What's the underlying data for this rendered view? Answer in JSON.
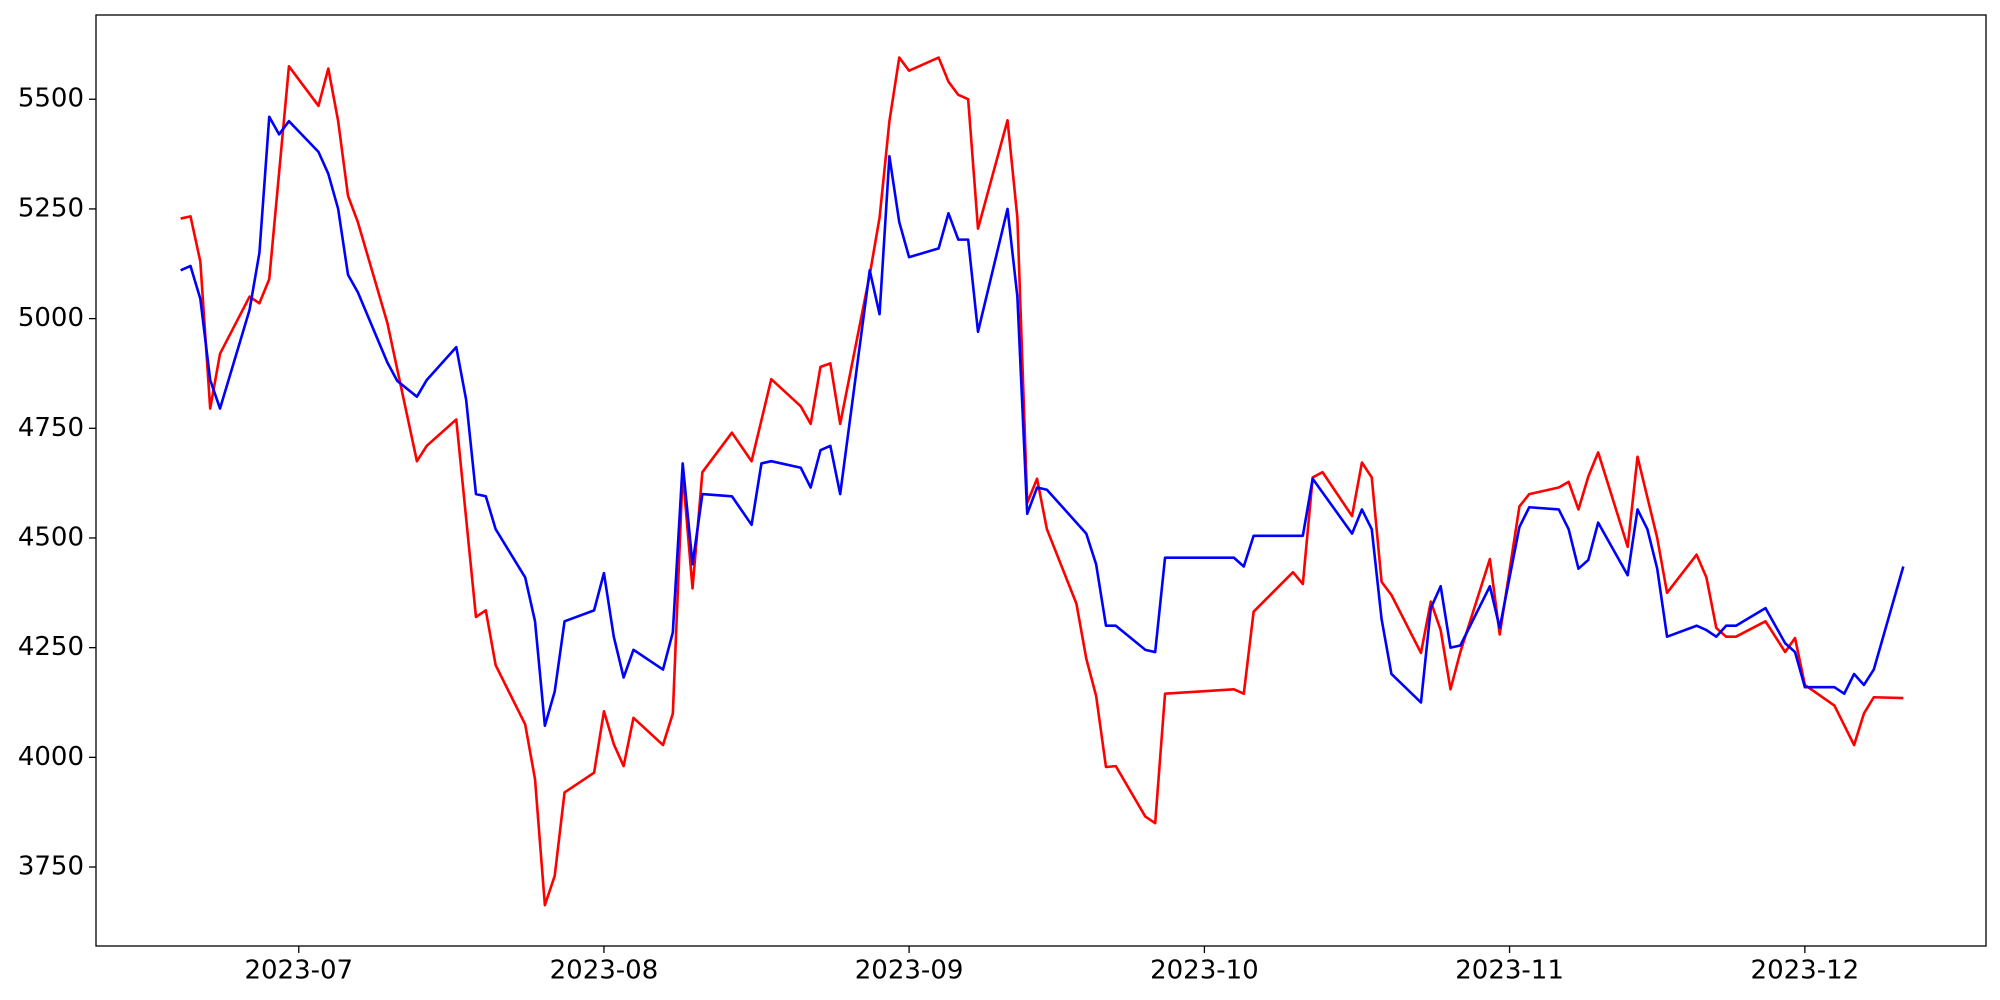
{
  "chart_data": {
    "type": "line",
    "xlim": [
      161.4,
      353.4
    ],
    "xticks": [
      {
        "value": 182,
        "label": "2023-07"
      },
      {
        "value": 213,
        "label": "2023-08"
      },
      {
        "value": 244,
        "label": "2023-09"
      },
      {
        "value": 274,
        "label": "2023-10"
      },
      {
        "value": 305,
        "label": "2023-11"
      },
      {
        "value": 335,
        "label": "2023-12"
      }
    ],
    "ylim": [
      3570,
      5692
    ],
    "yticks": [
      3750,
      4000,
      4250,
      4500,
      4750,
      5000,
      5250,
      5500
    ],
    "grid": false,
    "series": [
      {
        "color": "#ff0000",
        "x": [
          170,
          171,
          172,
          173,
          174,
          177,
          178,
          179,
          181,
          184,
          185,
          186,
          187,
          188,
          191,
          193,
          194,
          195,
          198,
          200,
          201,
          202,
          205,
          206,
          207,
          208,
          209,
          212,
          213,
          214,
          215,
          216,
          219,
          220,
          221,
          222,
          223,
          226,
          228,
          230,
          233,
          234,
          235,
          236,
          237,
          240,
          241,
          242,
          243,
          244,
          247,
          248,
          249,
          250,
          251,
          254,
          255,
          256,
          257,
          258,
          261,
          262,
          263,
          264,
          265,
          268,
          269,
          270,
          277,
          278,
          279,
          283,
          284,
          285,
          286,
          289,
          290,
          291,
          292,
          293,
          296,
          297,
          298,
          299,
          300,
          303,
          304,
          306,
          307,
          310,
          311,
          312,
          313,
          314,
          317,
          318,
          320,
          321,
          324,
          325,
          326,
          327,
          328,
          331,
          333,
          334,
          335,
          338,
          340,
          341,
          342,
          345
        ],
        "values": [
          5228,
          5233,
          5130,
          4795,
          4920,
          5050,
          5035,
          5090,
          5575,
          5485,
          5570,
          5450,
          5280,
          5220,
          4990,
          4780,
          4675,
          4710,
          4770,
          4320,
          4335,
          4210,
          4075,
          3950,
          3663,
          3730,
          3920,
          3965,
          4105,
          4030,
          3980,
          4090,
          4028,
          4100,
          4650,
          4385,
          4650,
          4740,
          4675,
          4862,
          4800,
          4760,
          4890,
          4898,
          4760,
          5100,
          5230,
          5450,
          5595,
          5565,
          5595,
          5540,
          5510,
          5500,
          5205,
          5452,
          5230,
          4580,
          4635,
          4520,
          4350,
          4225,
          4140,
          3978,
          3980,
          3865,
          3850,
          4145,
          4155,
          4145,
          4332,
          4422,
          4395,
          4638,
          4650,
          4550,
          4672,
          4638,
          4400,
          4370,
          4238,
          4355,
          4290,
          4155,
          4240,
          4452,
          4280,
          4572,
          4600,
          4615,
          4628,
          4565,
          4640,
          4695,
          4480,
          4685,
          4500,
          4375,
          4462,
          4410,
          4295,
          4275,
          4275,
          4310,
          4240,
          4272,
          4165,
          4118,
          4028,
          4100,
          4137,
          4135
        ]
      },
      {
        "color": "#0000ff",
        "x": [
          170,
          171,
          172,
          173,
          174,
          177,
          178,
          179,
          180,
          181,
          184,
          185,
          186,
          187,
          188,
          191,
          192,
          194,
          195,
          198,
          199,
          200,
          201,
          202,
          205,
          206,
          207,
          208,
          209,
          212,
          213,
          214,
          215,
          216,
          219,
          220,
          221,
          222,
          223,
          226,
          228,
          229,
          230,
          233,
          234,
          235,
          236,
          237,
          240,
          241,
          242,
          243,
          244,
          247,
          248,
          249,
          250,
          251,
          254,
          255,
          256,
          257,
          258,
          262,
          263,
          264,
          265,
          268,
          269,
          270,
          277,
          278,
          279,
          284,
          285,
          289,
          290,
          291,
          292,
          293,
          296,
          297,
          298,
          299,
          300,
          303,
          304,
          306,
          307,
          310,
          311,
          312,
          313,
          314,
          317,
          318,
          319,
          320,
          321,
          324,
          325,
          326,
          327,
          328,
          331,
          333,
          334,
          335,
          338,
          339,
          340,
          341,
          342,
          345
        ],
        "values": [
          5110,
          5120,
          5045,
          4860,
          4795,
          5020,
          5150,
          5460,
          5420,
          5450,
          5380,
          5330,
          5250,
          5100,
          5060,
          4900,
          4858,
          4822,
          4860,
          4935,
          4815,
          4600,
          4595,
          4520,
          4410,
          4310,
          4072,
          4150,
          4310,
          4335,
          4420,
          4275,
          4182,
          4245,
          4200,
          4285,
          4670,
          4440,
          4600,
          4595,
          4530,
          4670,
          4675,
          4660,
          4615,
          4700,
          4710,
          4600,
          5110,
          5010,
          5370,
          5220,
          5140,
          5160,
          5240,
          5180,
          5180,
          4970,
          5250,
          5050,
          4555,
          4615,
          4610,
          4510,
          4440,
          4300,
          4300,
          4245,
          4240,
          4455,
          4455,
          4435,
          4505,
          4505,
          4635,
          4510,
          4565,
          4520,
          4315,
          4190,
          4125,
          4340,
          4390,
          4250,
          4255,
          4390,
          4295,
          4525,
          4570,
          4565,
          4520,
          4430,
          4450,
          4535,
          4415,
          4565,
          4520,
          4430,
          4275,
          4300,
          4290,
          4275,
          4300,
          4300,
          4340,
          4260,
          4240,
          4160,
          4160,
          4145,
          4190,
          4165,
          4200,
          4435
        ]
      }
    ]
  }
}
